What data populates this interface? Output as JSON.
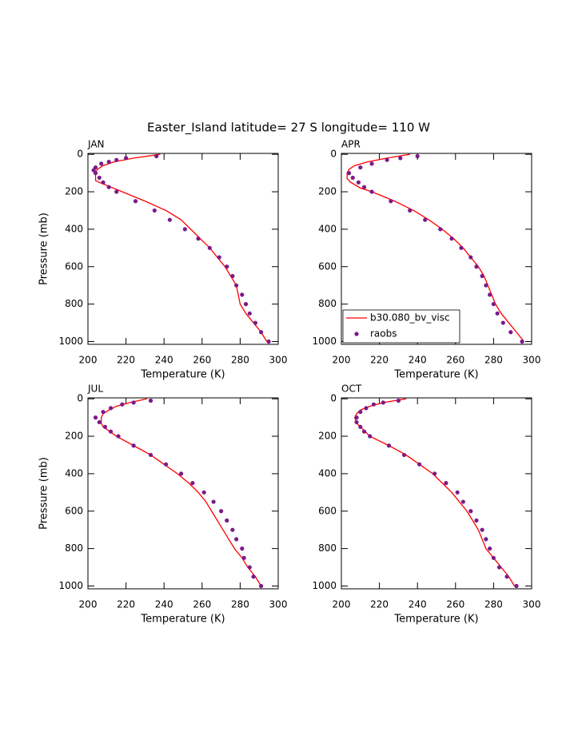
{
  "title": "Easter_Island  latitude= 27 S longitude= 110 W",
  "chart_data": [
    {
      "type": "line",
      "title": "JAN",
      "xlabel": "Temperature (K)",
      "ylabel": "Pressure (mb)",
      "xlim": [
        200,
        300
      ],
      "ylim": [
        1015,
        -5
      ],
      "xticks": [
        200,
        220,
        240,
        260,
        280,
        300
      ],
      "yticks": [
        0,
        200,
        400,
        600,
        800,
        1000
      ],
      "series": [
        {
          "color": "#ff0000",
          "mark": "line",
          "x": [
            238,
            224,
            214,
            208,
            205,
            204,
            204,
            206,
            218,
            230,
            241,
            249,
            254,
            259,
            264,
            268,
            272,
            275,
            278,
            279,
            280,
            283,
            287,
            291,
            294
          ],
          "values": [
            0,
            20,
            40,
            60,
            80,
            100,
            140,
            150,
            200,
            250,
            300,
            350,
            400,
            450,
            500,
            550,
            600,
            650,
            700,
            750,
            800,
            850,
            900,
            950,
            1000
          ]
        },
        {
          "color": "#7b1a8a",
          "mark": "dot",
          "x": [
            236,
            220,
            215,
            211,
            207,
            204,
            203,
            204,
            206,
            208,
            211,
            215,
            225,
            235,
            243,
            251,
            258,
            264,
            269,
            273,
            276,
            278,
            281,
            283,
            285,
            288,
            291,
            295
          ],
          "values": [
            10,
            20,
            30,
            40,
            50,
            70,
            85,
            100,
            125,
            150,
            175,
            200,
            250,
            300,
            350,
            400,
            450,
            500,
            550,
            600,
            650,
            700,
            750,
            800,
            850,
            900,
            950,
            1000
          ]
        }
      ]
    },
    {
      "type": "line",
      "title": "APR",
      "xlabel": "Temperature (K)",
      "legend": "lower left",
      "xlim": [
        200,
        300
      ],
      "ylim": [
        1015,
        -5
      ],
      "xticks": [
        200,
        220,
        240,
        260,
        280,
        300
      ],
      "yticks": [
        0,
        200,
        400,
        600,
        800,
        1000
      ],
      "series": [
        {
          "name": "b30.080_bv_visc",
          "color": "#ff0000",
          "mark": "line",
          "x": [
            236,
            224,
            214,
            207,
            204,
            203,
            203,
            205,
            210,
            216,
            228,
            238,
            246,
            253,
            259,
            264,
            268,
            272,
            275,
            277,
            279,
            281,
            284,
            288,
            292,
            296
          ],
          "values": [
            0,
            20,
            40,
            60,
            80,
            100,
            130,
            150,
            180,
            200,
            250,
            300,
            350,
            400,
            450,
            500,
            550,
            600,
            650,
            700,
            750,
            800,
            850,
            900,
            950,
            1000
          ]
        },
        {
          "name": "raobs",
          "color": "#7b1a8a",
          "mark": "dot",
          "x": [
            240,
            231,
            224,
            216,
            210,
            204,
            206,
            209,
            212,
            216,
            226,
            236,
            244,
            252,
            258,
            263,
            268,
            271,
            274,
            276,
            278,
            280,
            282,
            285,
            289,
            295
          ],
          "values": [
            10,
            20,
            30,
            50,
            70,
            100,
            125,
            150,
            175,
            200,
            250,
            300,
            350,
            400,
            450,
            500,
            550,
            600,
            650,
            700,
            750,
            800,
            850,
            900,
            950,
            1000
          ]
        }
      ]
    },
    {
      "type": "line",
      "title": "JUL",
      "xlabel": "Temperature (K)",
      "ylabel": "Pressure (mb)",
      "xlim": [
        200,
        300
      ],
      "ylim": [
        1015,
        -5
      ],
      "xticks": [
        200,
        220,
        240,
        260,
        280,
        300
      ],
      "yticks": [
        0,
        200,
        400,
        600,
        800,
        1000
      ],
      "series": [
        {
          "color": "#ff0000",
          "mark": "line",
          "x": [
            231,
            222,
            215,
            211,
            208,
            207,
            207,
            208,
            215,
            224,
            233,
            240,
            247,
            253,
            258,
            262,
            265,
            268,
            271,
            274,
            277,
            281,
            284,
            288,
            291
          ],
          "values": [
            0,
            20,
            40,
            60,
            80,
            100,
            130,
            150,
            200,
            250,
            300,
            350,
            400,
            450,
            500,
            550,
            600,
            650,
            700,
            750,
            800,
            850,
            900,
            950,
            1000
          ]
        },
        {
          "color": "#7b1a8a",
          "mark": "dot",
          "x": [
            233,
            224,
            218,
            212,
            208,
            204,
            206,
            209,
            212,
            216,
            224,
            233,
            241,
            249,
            255,
            261,
            266,
            270,
            273,
            276,
            278,
            281,
            282,
            285,
            287,
            291
          ],
          "values": [
            10,
            20,
            30,
            50,
            70,
            100,
            125,
            150,
            175,
            200,
            250,
            300,
            350,
            400,
            450,
            500,
            550,
            600,
            650,
            700,
            750,
            800,
            850,
            900,
            950,
            1000
          ]
        }
      ]
    },
    {
      "type": "line",
      "title": "OCT",
      "xlabel": "Temperature (K)",
      "xlim": [
        200,
        300
      ],
      "ylim": [
        1015,
        -5
      ],
      "xticks": [
        200,
        220,
        240,
        260,
        280,
        300
      ],
      "yticks": [
        0,
        200,
        400,
        600,
        800,
        1000
      ],
      "series": [
        {
          "color": "#ff0000",
          "mark": "line",
          "x": [
            234,
            222,
            215,
            210,
            208,
            207,
            208,
            210,
            215,
            225,
            234,
            241,
            248,
            253,
            258,
            262,
            266,
            269,
            272,
            274,
            276,
            280,
            284,
            288,
            291
          ],
          "values": [
            0,
            20,
            40,
            60,
            80,
            100,
            130,
            150,
            200,
            250,
            300,
            350,
            400,
            450,
            500,
            550,
            600,
            650,
            700,
            750,
            800,
            850,
            900,
            950,
            1000
          ]
        },
        {
          "color": "#7b1a8a",
          "mark": "dot",
          "x": [
            230,
            222,
            217,
            213,
            210,
            208,
            208,
            210,
            212,
            215,
            225,
            233,
            241,
            249,
            255,
            261,
            264,
            268,
            271,
            274,
            276,
            278,
            280,
            283,
            287,
            292
          ],
          "values": [
            10,
            20,
            30,
            50,
            70,
            100,
            125,
            150,
            175,
            200,
            250,
            300,
            350,
            400,
            450,
            500,
            550,
            600,
            650,
            700,
            750,
            800,
            850,
            900,
            950,
            1000
          ]
        }
      ]
    }
  ]
}
